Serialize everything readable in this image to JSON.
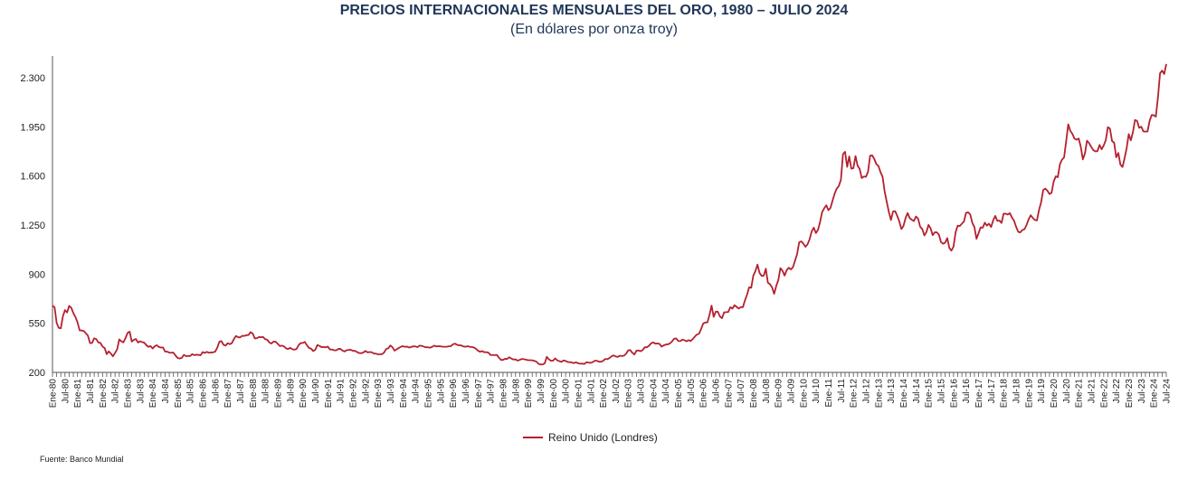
{
  "chart_data": {
    "type": "line",
    "title": "PRECIOS INTERNACIONALES MENSUALES DEL ORO, 1980 – JULIO 2024",
    "subtitle": "(En dólares por onza troy)",
    "xlabel": "",
    "ylabel": "",
    "ylim": [
      200,
      2450
    ],
    "y_ticks": [
      200,
      550,
      900,
      1250,
      1600,
      1950,
      2300
    ],
    "y_tick_labels": [
      "200",
      "550",
      "900",
      "1.250",
      "1.600",
      "1.950",
      "2.300"
    ],
    "grid": false,
    "legend_position": "bottom",
    "line_color": "#b5202e",
    "x_tick_labels": [
      "Ene-80",
      "Jul-80",
      "Ene-81",
      "Jul-81",
      "Ene-82",
      "Jul-82",
      "Ene-83",
      "Jul-83",
      "Ene-84",
      "Jul-84",
      "Ene-85",
      "Jul-85",
      "Ene-86",
      "Jul-86",
      "Ene-87",
      "Jul-87",
      "Ene-88",
      "Jul-88",
      "Ene-89",
      "Jul-89",
      "Ene-90",
      "Jul-90",
      "Ene-91",
      "Jul-91",
      "Ene-92",
      "Jul-92",
      "Ene-93",
      "Jul-93",
      "Ene-94",
      "Jul-94",
      "Ene-95",
      "Jul-95",
      "Ene-96",
      "Jul-96",
      "Ene-97",
      "Jul-97",
      "Ene-98",
      "Jul-98",
      "Ene-99",
      "Jul-99",
      "Ene-00",
      "Jul-00",
      "Ene-01",
      "Jul-01",
      "Ene-02",
      "Jul-02",
      "Ene-03",
      "Jul-03",
      "Ene-04",
      "Jul-04",
      "Ene-05",
      "Jul-05",
      "Ene-06",
      "Jul-06",
      "Ene-07",
      "Jul-07",
      "Ene-08",
      "Jul-08",
      "Ene-09",
      "Jul-09",
      "Ene-10",
      "Jul-10",
      "Ene-11",
      "Jul-11",
      "Ene-12",
      "Jul-12",
      "Ene-13",
      "Jul-13",
      "Ene-14",
      "Jul-14",
      "Ene-15",
      "Jul-15",
      "Ene-16",
      "Jul-16",
      "Ene-17",
      "Jul-17",
      "Ene-18",
      "Jul-18",
      "Ene-19",
      "Jul-19",
      "Ene-20",
      "Jul-20",
      "Ene-21",
      "Jul-21",
      "Ene-22",
      "Jul-22",
      "Ene-23",
      "Jul-23",
      "Ene-24",
      "Jul-24"
    ],
    "series": [
      {
        "name": "Reino Unido (Londres)",
        "values": [
          675,
          665,
          553,
          517,
          514,
          600,
          644,
          627,
          674,
          661,
          623,
          595,
          557,
          500,
          499,
          495,
          479,
          461,
          409,
          410,
          443,
          437,
          413,
          410,
          384,
          374,
          330,
          350,
          334,
          315,
          339,
          364,
          435,
          422,
          414,
          444,
          481,
          491,
          419,
          432,
          438,
          413,
          422,
          416,
          412,
          394,
          382,
          388,
          370,
          386,
          394,
          381,
          377,
          378,
          348,
          348,
          341,
          340,
          341,
          320,
          303,
          299,
          304,
          325,
          316,
          317,
          317,
          330,
          323,
          326,
          325,
          322,
          345,
          339,
          346,
          340,
          342,
          343,
          348,
          376,
          418,
          423,
          397,
          391,
          408,
          401,
          409,
          438,
          460,
          450,
          450,
          461,
          460,
          465,
          467,
          487,
          477,
          442,
          444,
          452,
          451,
          452,
          437,
          432,
          413,
          406,
          420,
          419,
          404,
          388,
          391,
          385,
          371,
          367,
          375,
          365,
          362,
          367,
          394,
          409,
          410,
          417,
          393,
          374,
          369,
          352,
          362,
          395,
          389,
          380,
          381,
          378,
          384,
          364,
          363,
          358,
          357,
          367,
          368,
          356,
          349,
          358,
          360,
          361,
          354,
          354,
          345,
          338,
          337,
          341,
          353,
          343,
          345,
          344,
          335,
          334,
          329,
          329,
          330,
          342,
          367,
          372,
          392,
          379,
          355,
          364,
          374,
          383,
          387,
          382,
          384,
          377,
          381,
          386,
          385,
          380,
          391,
          389,
          384,
          379,
          379,
          376,
          382,
          391,
          385,
          387,
          386,
          383,
          383,
          383,
          386,
          387,
          400,
          405,
          396,
          393,
          392,
          385,
          383,
          387,
          383,
          381,
          378,
          369,
          355,
          347,
          352,
          344,
          344,
          341,
          324,
          324,
          323,
          325,
          306,
          289,
          289,
          297,
          296,
          308,
          299,
          292,
          293,
          284,
          289,
          296,
          294,
          291,
          287,
          287,
          286,
          282,
          277,
          261,
          256,
          257,
          265,
          311,
          293,
          283,
          284,
          300,
          286,
          280,
          275,
          285,
          282,
          274,
          273,
          270,
          266,
          272,
          265,
          262,
          263,
          260,
          272,
          270,
          268,
          273,
          283,
          283,
          276,
          276,
          282,
          296,
          294,
          302,
          314,
          321,
          314,
          310,
          319,
          317,
          319,
          333,
          357,
          359,
          340,
          328,
          355,
          356,
          351,
          360,
          379,
          379,
          390,
          407,
          414,
          405,
          406,
          404,
          384,
          392,
          398,
          400,
          406,
          420,
          439,
          442,
          424,
          423,
          434,
          429,
          422,
          430,
          424,
          438,
          456,
          470,
          476,
          510,
          549,
          555,
          557,
          610,
          676,
          596,
          633,
          632,
          599,
          586,
          628,
          629,
          631,
          665,
          655,
          679,
          667,
          655,
          665,
          665,
          713,
          754,
          806,
          803,
          889,
          922,
          968,
          909,
          888,
          889,
          939,
          839,
          829,
          806,
          760,
          816,
          858,
          943,
          924,
          890,
          928,
          946,
          934,
          949,
          996,
          1043,
          1127,
          1134,
          1118,
          1095,
          1113,
          1149,
          1205,
          1232,
          1193,
          1215,
          1271,
          1342,
          1370,
          1391,
          1356,
          1372,
          1424,
          1474,
          1510,
          1528,
          1572,
          1756,
          1772,
          1665,
          1739,
          1652,
          1656,
          1742,
          1673,
          1650,
          1585,
          1596,
          1594,
          1630,
          1744,
          1747,
          1721,
          1684,
          1671,
          1627,
          1593,
          1487,
          1414,
          1343,
          1286,
          1347,
          1349,
          1316,
          1276,
          1222,
          1244,
          1300,
          1336,
          1299,
          1288,
          1279,
          1311,
          1296,
          1238,
          1222,
          1176,
          1200,
          1251,
          1227,
          1178,
          1198,
          1198,
          1181,
          1128,
          1117,
          1125,
          1157,
          1086,
          1068,
          1097,
          1199,
          1246,
          1243,
          1260,
          1276,
          1337,
          1341,
          1326,
          1266,
          1236,
          1152,
          1192,
          1234,
          1231,
          1267,
          1246,
          1260,
          1236,
          1283,
          1315,
          1280,
          1282,
          1265,
          1331,
          1331,
          1325,
          1335,
          1304,
          1281,
          1238,
          1202,
          1198,
          1215,
          1220,
          1250,
          1291,
          1320,
          1301,
          1286,
          1283,
          1359,
          1413,
          1500,
          1510,
          1495,
          1471,
          1480,
          1560,
          1597,
          1591,
          1683,
          1716,
          1732,
          1847,
          1968,
          1921,
          1900,
          1866,
          1858,
          1867,
          1808,
          1718,
          1760,
          1851,
          1834,
          1807,
          1785,
          1775,
          1777,
          1821,
          1790,
          1817,
          1856,
          1948,
          1937,
          1849,
          1837,
          1733,
          1764,
          1681,
          1664,
          1726,
          1798,
          1898,
          1854,
          1912,
          1999,
          1992,
          1943,
          1951,
          1918,
          1916,
          1917,
          1992,
          2034,
          2033,
          2023,
          2159,
          2331,
          2351,
          2326,
          2398
        ]
      }
    ],
    "source": "Fuente: Banco Mundial"
  }
}
